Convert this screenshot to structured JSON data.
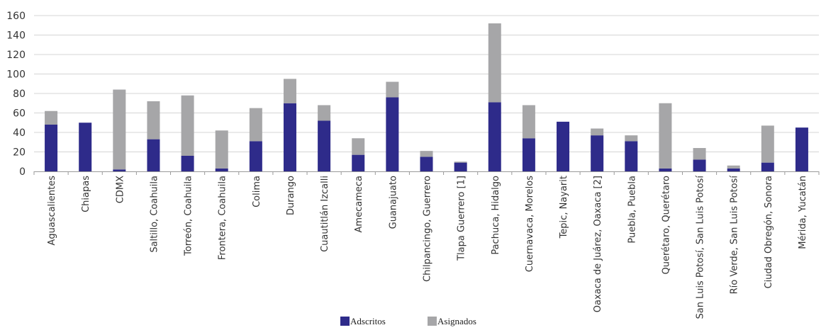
{
  "chart_data": {
    "type": "bar",
    "stacked": true,
    "categories": [
      "Aguascalientes",
      "Chiapas",
      "CDMX",
      "Saltillo, Coahuila",
      "Torreón, Coahuila",
      "Frontera, Coahuila",
      "Colima",
      "Durango",
      "Cuautitlán Izcalli",
      "Amecameca",
      "Guanajuato",
      "Chilpancingo, Guerrero",
      "Tlapa Guerrero [1]",
      "Pachuca, Hidalgo",
      "Cuernavaca, Morelos",
      "Tepic, Nayarit",
      "Oaxaca de Juárez, Oaxaca [2]",
      "Puebla, Puebla",
      "Querétaro, Querétaro",
      "San Luis Potosí, San Luis Potosí",
      "Río Verde, San Luis Potosí",
      "Ciudad Obregón, Sonora",
      "Mérida, Yucatán"
    ],
    "series": [
      {
        "name": "Adscritos",
        "color": "#2e2b8a",
        "values": [
          48,
          50,
          2,
          33,
          16,
          3,
          31,
          70,
          52,
          17,
          76,
          15,
          9,
          71,
          34,
          51,
          37,
          31,
          3,
          12,
          3,
          9,
          45
        ]
      },
      {
        "name": "Asignados",
        "color": "#a6a6a8",
        "values": [
          14,
          0,
          82,
          39,
          62,
          39,
          34,
          25,
          16,
          17,
          16,
          6,
          1,
          81,
          34,
          0,
          7,
          6,
          67,
          12,
          3,
          38,
          0
        ]
      }
    ],
    "ylim": [
      0,
      160
    ],
    "yticks": [
      "0",
      "20",
      "40",
      "60",
      "80",
      "100",
      "120",
      "140",
      "160"
    ],
    "grid": "horizontal",
    "legend": "bottom-center",
    "title": "",
    "xlabel": "",
    "ylabel": ""
  }
}
